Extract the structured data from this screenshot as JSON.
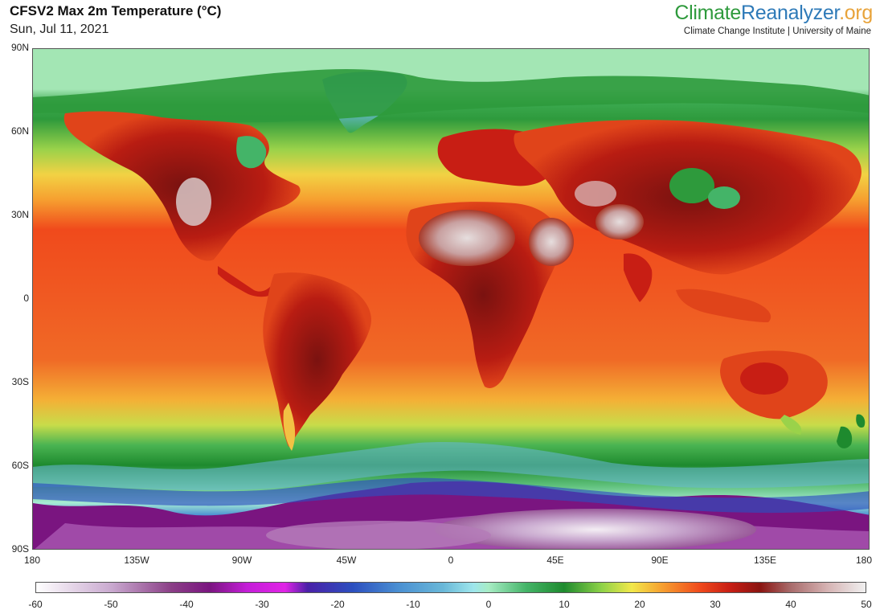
{
  "header": {
    "title": "CFSV2 Max 2m Temperature (°C)",
    "date": "Sun, Jul 11, 2021"
  },
  "brand": {
    "part1": "Climate",
    "part2": "Reanalyzer",
    "part3": ".org",
    "institute": "Climate Change Institute | University of Maine",
    "colors": {
      "climate": "#2e9a3c",
      "reanalyzer": "#2e7ab8",
      "org": "#e8a33a"
    }
  },
  "map": {
    "projection": "equirectangular",
    "variable": "max 2m temperature",
    "lat_labels": [
      "90N",
      "60N",
      "30N",
      "0",
      "30S",
      "60S",
      "90S"
    ],
    "lon_labels": [
      "180",
      "135W",
      "90W",
      "45W",
      "0",
      "45E",
      "90E",
      "135E",
      "180"
    ]
  },
  "colorbar": {
    "min": -60,
    "max": 50,
    "tick_labels": [
      "-60",
      "-50",
      "-40",
      "-30",
      "-20",
      "-10",
      "0",
      "10",
      "20",
      "30",
      "40",
      "50"
    ],
    "stops": [
      {
        "value": -60,
        "color": "#ffffff"
      },
      {
        "value": -50,
        "color": "#c9a9cf"
      },
      {
        "value": -42,
        "color": "#8a3e86"
      },
      {
        "value": -37,
        "color": "#7a1580"
      },
      {
        "value": -32,
        "color": "#c41ed8"
      },
      {
        "value": -27,
        "color": "#e024e6"
      },
      {
        "value": -24,
        "color": "#4a20a8"
      },
      {
        "value": -18,
        "color": "#2c4fbf"
      },
      {
        "value": -12,
        "color": "#4a8fd2"
      },
      {
        "value": -6,
        "color": "#6ab8d8"
      },
      {
        "value": -2,
        "color": "#9ee6ec"
      },
      {
        "value": 0,
        "color": "#a7ecc4"
      },
      {
        "value": 5,
        "color": "#44b468"
      },
      {
        "value": 10,
        "color": "#1e8a2e"
      },
      {
        "value": 15,
        "color": "#8ed248"
      },
      {
        "value": 19,
        "color": "#f2e84a"
      },
      {
        "value": 23,
        "color": "#f6a030"
      },
      {
        "value": 28,
        "color": "#f04a1c"
      },
      {
        "value": 32,
        "color": "#c81e14"
      },
      {
        "value": 36,
        "color": "#8a1410"
      },
      {
        "value": 40,
        "color": "#a86a6a"
      },
      {
        "value": 45,
        "color": "#d6b4b4"
      },
      {
        "value": 50,
        "color": "#f0f0f0"
      }
    ]
  }
}
